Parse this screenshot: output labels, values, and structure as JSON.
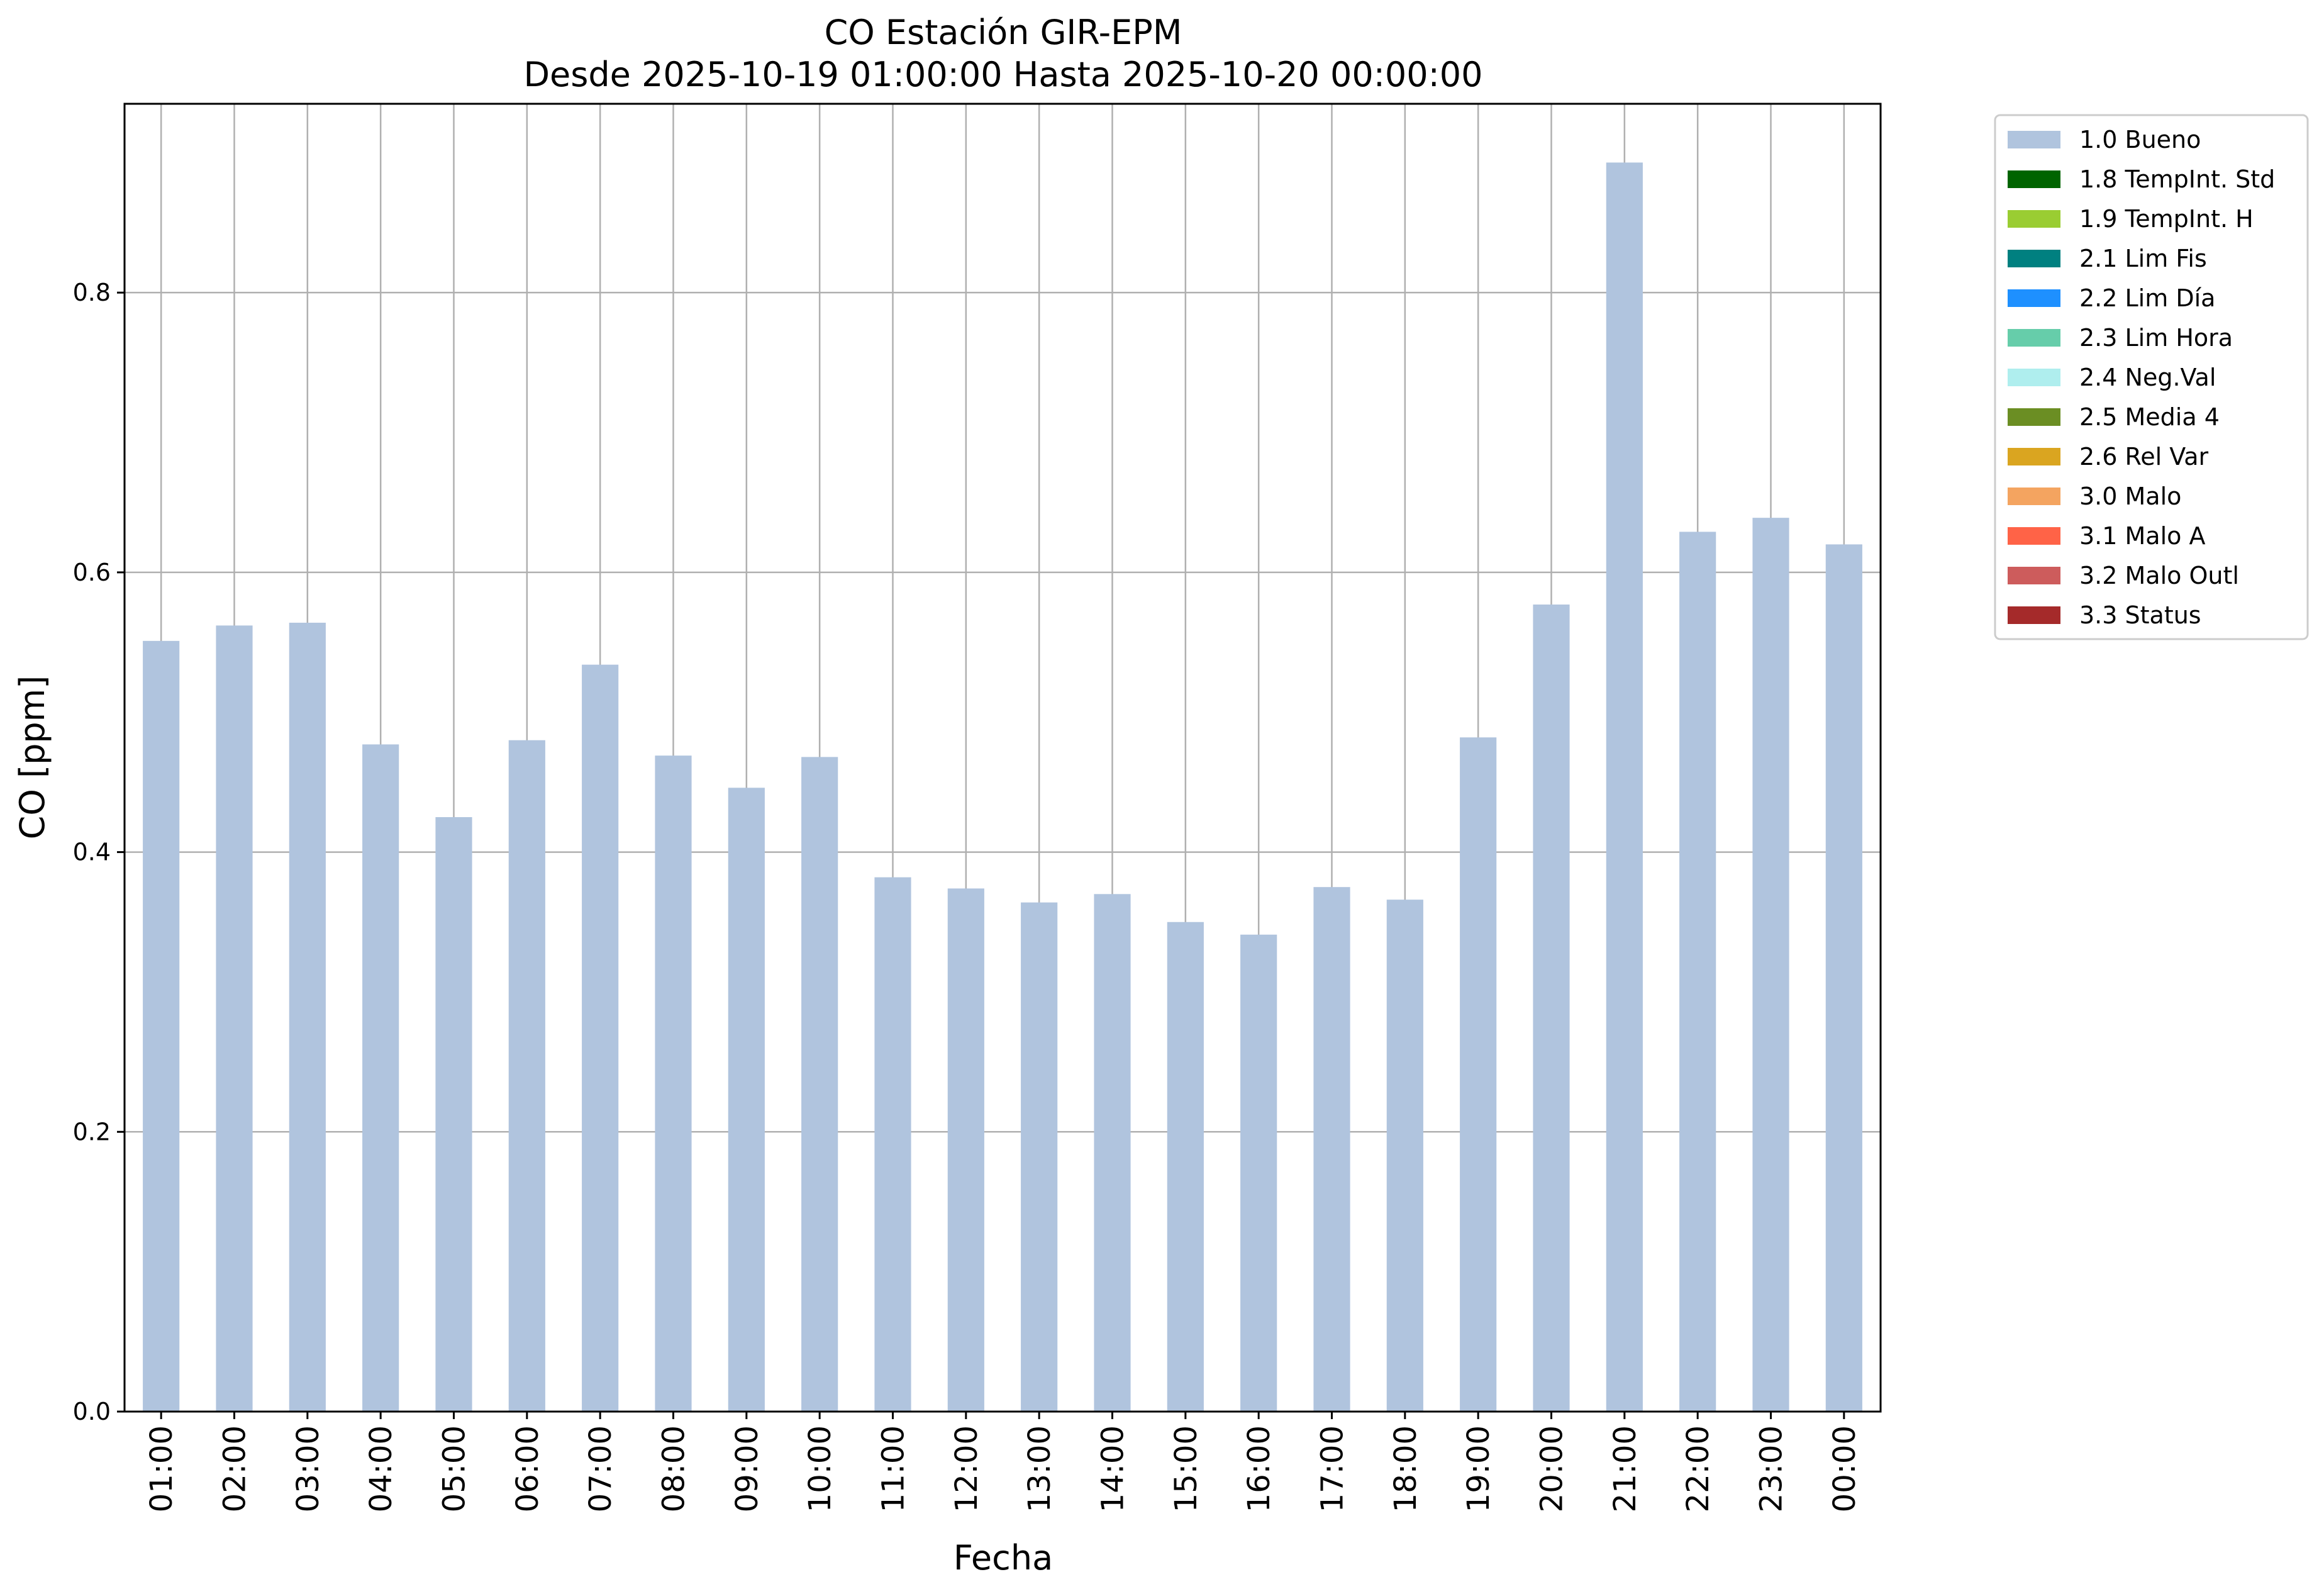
{
  "chart_data": {
    "type": "bar",
    "title": "CO Estación GIR-EPM",
    "subtitle": "Desde 2025-10-19 01:00:00 Hasta 2025-10-20 00:00:00",
    "xlabel": "Fecha",
    "ylabel": "CO [ppm]",
    "ylim": [
      0,
      0.935
    ],
    "yticks": [
      0.0,
      0.2,
      0.4,
      0.6,
      0.8
    ],
    "ytick_labels": [
      "0.0",
      "0.2",
      "0.4",
      "0.6",
      "0.8"
    ],
    "grid": true,
    "legend_position": "outside-top-right",
    "categories": [
      "01:00",
      "02:00",
      "03:00",
      "04:00",
      "05:00",
      "06:00",
      "07:00",
      "08:00",
      "09:00",
      "10:00",
      "11:00",
      "12:00",
      "13:00",
      "14:00",
      "15:00",
      "16:00",
      "17:00",
      "18:00",
      "19:00",
      "20:00",
      "21:00",
      "22:00",
      "23:00",
      "00:00"
    ],
    "series": [
      {
        "name": "1.0 Bueno",
        "color": "#b0c4de",
        "values": [
          0.551,
          0.562,
          0.564,
          0.477,
          0.425,
          0.48,
          0.534,
          0.469,
          0.446,
          0.468,
          0.382,
          0.374,
          0.364,
          0.37,
          0.35,
          0.341,
          0.375,
          0.366,
          0.482,
          0.577,
          0.893,
          0.629,
          0.639,
          0.62
        ]
      }
    ],
    "legend": [
      {
        "label": "1.0 Bueno",
        "color": "#b0c4de"
      },
      {
        "label": "1.8 TempInt. Std",
        "color": "#006400"
      },
      {
        "label": "1.9 TempInt. H",
        "color": "#9acd32"
      },
      {
        "label": "2.1 Lim Fis",
        "color": "#008080"
      },
      {
        "label": "2.2 Lim Día",
        "color": "#1e90ff"
      },
      {
        "label": "2.3 Lim Hora",
        "color": "#66cdaa"
      },
      {
        "label": "2.4 Neg.Val",
        "color": "#afeeee"
      },
      {
        "label": "2.5 Media 4",
        "color": "#6b8e23"
      },
      {
        "label": "2.6 Rel Var",
        "color": "#daa520"
      },
      {
        "label": "3.0 Malo",
        "color": "#f4a460"
      },
      {
        "label": "3.1 Malo A",
        "color": "#ff6347"
      },
      {
        "label": "3.2 Malo Outl",
        "color": "#cd5c5c"
      },
      {
        "label": "3.3 Status",
        "color": "#a52a2a"
      }
    ]
  }
}
